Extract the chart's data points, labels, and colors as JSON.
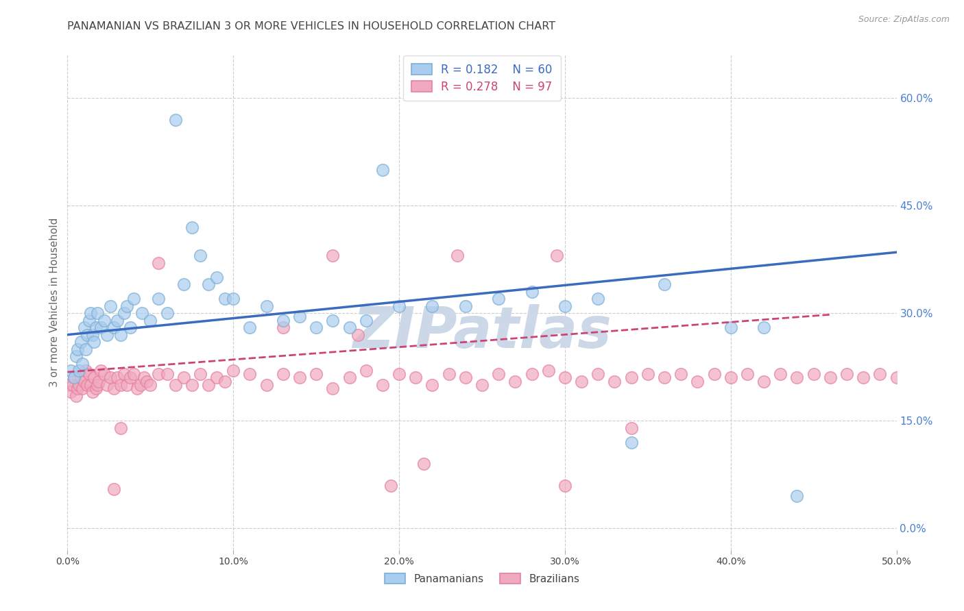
{
  "title": "PANAMANIAN VS BRAZILIAN 3 OR MORE VEHICLES IN HOUSEHOLD CORRELATION CHART",
  "source": "Source: ZipAtlas.com",
  "ylabel": "3 or more Vehicles in Household",
  "xlim": [
    0.0,
    0.5
  ],
  "ylim": [
    -0.03,
    0.66
  ],
  "ytick_vals": [
    0.0,
    0.15,
    0.3,
    0.45,
    0.6
  ],
  "right_axis_labels": [
    "0.0%",
    "15.0%",
    "30.0%",
    "45.0%",
    "60.0%"
  ],
  "xtick_vals": [
    0.0,
    0.1,
    0.2,
    0.3,
    0.4,
    0.5
  ],
  "xtick_labels": [
    "0.0%",
    "10.0%",
    "20.0%",
    "30.0%",
    "40.0%",
    "50.0%"
  ],
  "panamanian_color": "#7bafd4",
  "panamanian_face": "#aaccee",
  "brazilian_color": "#e87fa0",
  "brazilian_face": "#f0aabf",
  "panamanian_line_color": "#3a6bbf",
  "brazilian_line_color": "#cc4477",
  "watermark": "ZIPatlas",
  "watermark_color": "#ccd8e8",
  "background_color": "#ffffff",
  "title_color": "#444444",
  "right_axis_color": "#4a7fd4",
  "pan_x": [
    0.002,
    0.004,
    0.005,
    0.006,
    0.007,
    0.008,
    0.009,
    0.01,
    0.011,
    0.012,
    0.013,
    0.014,
    0.015,
    0.016,
    0.017,
    0.018,
    0.02,
    0.022,
    0.024,
    0.026,
    0.028,
    0.03,
    0.032,
    0.034,
    0.036,
    0.038,
    0.04,
    0.045,
    0.05,
    0.055,
    0.06,
    0.065,
    0.07,
    0.075,
    0.08,
    0.085,
    0.09,
    0.095,
    0.1,
    0.11,
    0.12,
    0.13,
    0.14,
    0.15,
    0.16,
    0.17,
    0.18,
    0.19,
    0.2,
    0.22,
    0.24,
    0.26,
    0.28,
    0.3,
    0.32,
    0.34,
    0.36,
    0.4,
    0.42,
    0.44
  ],
  "pan_y": [
    0.22,
    0.21,
    0.24,
    0.25,
    0.22,
    0.26,
    0.23,
    0.28,
    0.25,
    0.27,
    0.29,
    0.3,
    0.27,
    0.26,
    0.28,
    0.3,
    0.28,
    0.29,
    0.27,
    0.31,
    0.28,
    0.29,
    0.27,
    0.3,
    0.31,
    0.28,
    0.32,
    0.3,
    0.29,
    0.32,
    0.3,
    0.57,
    0.34,
    0.42,
    0.38,
    0.34,
    0.35,
    0.32,
    0.32,
    0.28,
    0.31,
    0.29,
    0.295,
    0.28,
    0.29,
    0.28,
    0.29,
    0.5,
    0.31,
    0.31,
    0.31,
    0.32,
    0.33,
    0.31,
    0.32,
    0.12,
    0.34,
    0.28,
    0.28,
    0.045
  ],
  "bra_x": [
    0.001,
    0.002,
    0.003,
    0.004,
    0.005,
    0.006,
    0.007,
    0.008,
    0.009,
    0.01,
    0.011,
    0.012,
    0.013,
    0.014,
    0.015,
    0.016,
    0.017,
    0.018,
    0.019,
    0.02,
    0.022,
    0.024,
    0.026,
    0.028,
    0.03,
    0.032,
    0.034,
    0.036,
    0.038,
    0.04,
    0.042,
    0.044,
    0.046,
    0.048,
    0.05,
    0.055,
    0.06,
    0.065,
    0.07,
    0.075,
    0.08,
    0.085,
    0.09,
    0.095,
    0.1,
    0.11,
    0.12,
    0.13,
    0.14,
    0.15,
    0.16,
    0.17,
    0.18,
    0.19,
    0.2,
    0.21,
    0.22,
    0.23,
    0.24,
    0.25,
    0.26,
    0.27,
    0.28,
    0.29,
    0.3,
    0.31,
    0.32,
    0.33,
    0.34,
    0.35,
    0.36,
    0.37,
    0.38,
    0.39,
    0.4,
    0.41,
    0.42,
    0.43,
    0.44,
    0.45,
    0.46,
    0.47,
    0.48,
    0.49,
    0.5,
    0.028,
    0.032,
    0.055,
    0.13,
    0.16,
    0.175,
    0.195,
    0.215,
    0.235,
    0.295,
    0.3,
    0.34
  ],
  "bra_y": [
    0.2,
    0.19,
    0.2,
    0.21,
    0.185,
    0.195,
    0.2,
    0.21,
    0.195,
    0.205,
    0.22,
    0.2,
    0.215,
    0.2,
    0.19,
    0.21,
    0.195,
    0.2,
    0.205,
    0.22,
    0.215,
    0.2,
    0.21,
    0.195,
    0.21,
    0.2,
    0.215,
    0.2,
    0.21,
    0.215,
    0.195,
    0.2,
    0.21,
    0.205,
    0.2,
    0.215,
    0.215,
    0.2,
    0.21,
    0.2,
    0.215,
    0.2,
    0.21,
    0.205,
    0.22,
    0.215,
    0.2,
    0.215,
    0.21,
    0.215,
    0.195,
    0.21,
    0.22,
    0.2,
    0.215,
    0.21,
    0.2,
    0.215,
    0.21,
    0.2,
    0.215,
    0.205,
    0.215,
    0.22,
    0.21,
    0.205,
    0.215,
    0.205,
    0.21,
    0.215,
    0.21,
    0.215,
    0.205,
    0.215,
    0.21,
    0.215,
    0.205,
    0.215,
    0.21,
    0.215,
    0.21,
    0.215,
    0.21,
    0.215,
    0.21,
    0.055,
    0.14,
    0.37,
    0.28,
    0.38,
    0.27,
    0.06,
    0.09,
    0.38,
    0.38,
    0.06,
    0.14
  ]
}
